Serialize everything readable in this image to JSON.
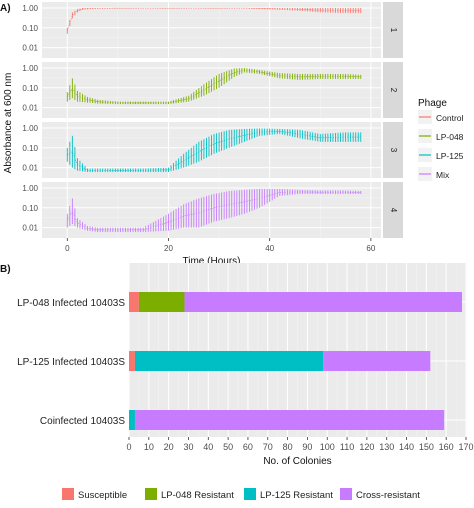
{
  "panel_a_label": "A)",
  "panel_b_label": "B)",
  "chart_data": [
    {
      "type": "line",
      "panel": "A",
      "xlabel": "Time (Hours)",
      "ylabel": "Absorbance at 600 nm",
      "xlim": [
        -5,
        62
      ],
      "x_ticks": [
        0,
        20,
        40,
        60
      ],
      "y_scale": "log",
      "ylim": [
        0.003,
        2.0
      ],
      "y_ticks": [
        0.01,
        0.1,
        1.0
      ],
      "y_tick_labels": [
        "0.01",
        "0.10",
        "1.00"
      ],
      "grid": true,
      "legend_title": "Phage",
      "legend_position": "right",
      "legend_entries": [
        "Control",
        "LP-048",
        "LP-125",
        "Mix"
      ],
      "colors": {
        "Control": "#F8766D",
        "LP-048": "#7CAE00",
        "LP-125": "#00BFC4",
        "Mix": "#C77CFF"
      },
      "facets": [
        {
          "label": "1",
          "series": "Control",
          "x": [
            0,
            1,
            2,
            3,
            5,
            10,
            20,
            30,
            35,
            40,
            45,
            50,
            55,
            58
          ],
          "min": [
            0.05,
            0.3,
            0.6,
            0.8,
            0.9,
            0.95,
            0.95,
            0.95,
            0.95,
            0.85,
            0.75,
            0.6,
            0.55,
            0.55
          ],
          "max": [
            0.1,
            0.6,
            0.9,
            1.0,
            1.0,
            1.0,
            1.0,
            1.0,
            1.0,
            1.0,
            1.0,
            1.0,
            1.0,
            1.0
          ]
        },
        {
          "label": "2",
          "series": "LP-048",
          "x": [
            0,
            1,
            2,
            4,
            6,
            10,
            15,
            20,
            24,
            27,
            30,
            33,
            35,
            38,
            42,
            46,
            50,
            55,
            58
          ],
          "min": [
            0.02,
            0.03,
            0.02,
            0.018,
            0.016,
            0.015,
            0.015,
            0.015,
            0.02,
            0.04,
            0.1,
            0.35,
            0.6,
            0.5,
            0.3,
            0.25,
            0.28,
            0.28,
            0.28
          ],
          "max": [
            0.06,
            0.3,
            0.07,
            0.035,
            0.025,
            0.02,
            0.02,
            0.02,
            0.04,
            0.15,
            0.5,
            0.95,
            1.0,
            0.8,
            0.55,
            0.5,
            0.5,
            0.5,
            0.45
          ]
        },
        {
          "label": "3",
          "series": "LP-125",
          "x": [
            0,
            1,
            2,
            4,
            6,
            10,
            15,
            20,
            23,
            26,
            29,
            32,
            35,
            38,
            42,
            46,
            50,
            55,
            58
          ],
          "min": [
            0.02,
            0.01,
            0.007,
            0.006,
            0.006,
            0.006,
            0.006,
            0.006,
            0.01,
            0.02,
            0.05,
            0.1,
            0.2,
            0.4,
            0.5,
            0.3,
            0.2,
            0.2,
            0.2
          ],
          "max": [
            0.1,
            0.4,
            0.03,
            0.009,
            0.009,
            0.009,
            0.009,
            0.01,
            0.05,
            0.2,
            0.5,
            0.8,
            0.9,
            0.95,
            0.9,
            0.8,
            0.5,
            0.6,
            0.6
          ]
        },
        {
          "label": "4",
          "series": "Mix",
          "x": [
            0,
            1,
            2,
            4,
            6,
            10,
            15,
            20,
            23,
            26,
            29,
            32,
            35,
            38,
            42,
            46,
            50,
            55,
            58
          ],
          "min": [
            0.01,
            0.015,
            0.01,
            0.007,
            0.006,
            0.006,
            0.006,
            0.007,
            0.01,
            0.01,
            0.02,
            0.03,
            0.05,
            0.1,
            0.4,
            0.5,
            0.5,
            0.5,
            0.5
          ],
          "max": [
            0.05,
            0.3,
            0.03,
            0.012,
            0.01,
            0.01,
            0.01,
            0.05,
            0.15,
            0.3,
            0.5,
            0.7,
            0.8,
            0.9,
            0.9,
            0.8,
            0.75,
            0.75,
            0.7
          ]
        }
      ]
    },
    {
      "type": "bar",
      "panel": "B",
      "orientation": "horizontal",
      "stacked": true,
      "categories": [
        "LP-048 Infected 10403S",
        "LP-125 Infected 10403S",
        "Coinfected 10403S"
      ],
      "series": [
        {
          "name": "Susceptible",
          "values": [
            5,
            3,
            0
          ]
        },
        {
          "name": "LP-048 Resistant",
          "values": [
            23,
            0,
            0
          ]
        },
        {
          "name": "LP-125 Resistant",
          "values": [
            0,
            95,
            3
          ]
        },
        {
          "name": "Cross-resistant",
          "values": [
            140,
            54,
            156
          ]
        }
      ],
      "colors": [
        "#F8766D",
        "#7CAE00",
        "#00BFC4",
        "#C77CFF"
      ],
      "xlabel": "No. of Colonies",
      "ylabel": "",
      "xlim": [
        0,
        170
      ],
      "x_ticks": [
        0,
        10,
        20,
        30,
        40,
        50,
        60,
        70,
        80,
        90,
        100,
        110,
        120,
        130,
        140,
        150,
        160,
        170
      ],
      "grid": true,
      "legend_position": "bottom"
    }
  ]
}
